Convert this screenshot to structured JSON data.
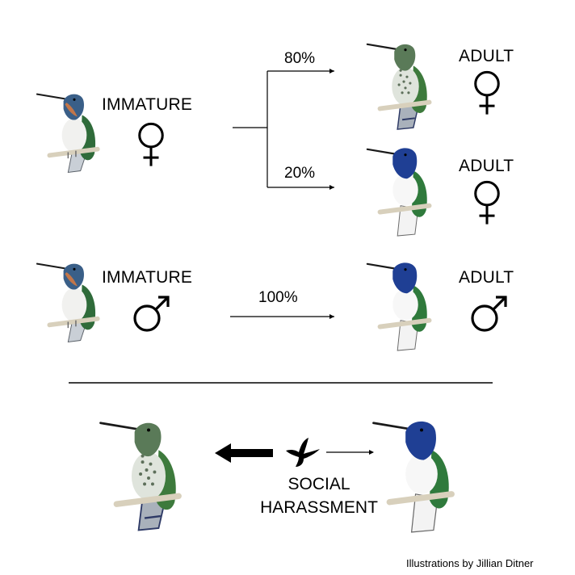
{
  "rows": [
    {
      "start_label": "IMMATURE",
      "start_sex": "female-symbol-icon",
      "branches": [
        {
          "percent": "80%",
          "end_label": "ADULT",
          "end_sex": "female-symbol-icon",
          "end_plumage": "green-speckled"
        },
        {
          "percent": "20%",
          "end_label": "ADULT",
          "end_sex": "female-symbol-icon",
          "end_plumage": "blue-headed"
        }
      ]
    },
    {
      "start_label": "IMMATURE",
      "start_sex": "male-symbol-icon",
      "branches": [
        {
          "percent": "100%",
          "end_label": "ADULT",
          "end_sex": "male-symbol-icon",
          "end_plumage": "blue-headed"
        }
      ]
    }
  ],
  "bottom": {
    "caption_line1": "SOCIAL",
    "caption_line2": "HARASSMENT",
    "left_plumage": "green-speckled",
    "right_plumage": "blue-headed",
    "center_icon": "hummingbird-silhouette-icon"
  },
  "credit": "Illustrations by Jillian Ditner",
  "colors": {
    "immature_head": "#3a5f88",
    "immature_throat": "#c2764a",
    "male_head": "#1f3f94",
    "green_back": "#3d7a3c",
    "speckle": "#8a9a88",
    "perch": "#d8d0bc"
  }
}
